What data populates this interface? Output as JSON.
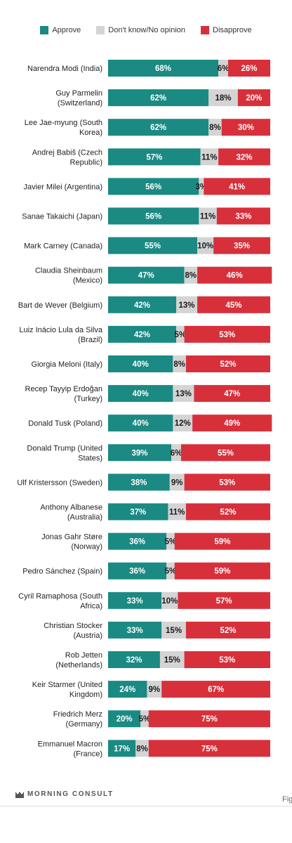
{
  "legend": {
    "approve": "Approve",
    "dont_know": "Don't know/No opinion",
    "disapprove": "Disapprove"
  },
  "colors": {
    "approve": "#1a8a83",
    "dont_know": "#d4d4d4",
    "disapprove": "#d7303b"
  },
  "footer": {
    "brand": "MORNING CONSULT",
    "brand_icon": "morning-consult-logo-icon",
    "fig_text": "Fig"
  },
  "chart_data": {
    "type": "bar",
    "orientation": "horizontal",
    "stacked": true,
    "categories": [
      "Narendra Modi (India)",
      "Guy Parmelin (Switzerland)",
      "Lee Jae-myung (South Korea)",
      "Andrej Babiš (Czech Republic)",
      "Javier Milei (Argentina)",
      "Sanae Takaichi (Japan)",
      "Mark Carney (Canada)",
      "Claudia Sheinbaum (Mexico)",
      "Bart de Wever (Belgium)",
      "Luiz Inácio Lula da Silva (Brazil)",
      "Giorgia Meloni (Italy)",
      "Recep Tayyip Erdoğan (Turkey)",
      "Donald Tusk (Poland)",
      "Donald Trump (United States)",
      "Ulf Kristersson (Sweden)",
      "Anthony Albanese (Australia)",
      "Jonas Gahr Støre (Norway)",
      "Pedro Sánchez (Spain)",
      "Cyril Ramaphosa (South Africa)",
      "Christian Stocker (Austria)",
      "Rob Jetten (Netherlands)",
      "Keir Starmer (United Kingdom)",
      "Friedrich Merz (Germany)",
      "Emmanuel Macron (France)"
    ],
    "label_lines": [
      [
        "Narendra Modi (India)"
      ],
      [
        "Guy Parmelin",
        "(Switzerland)"
      ],
      [
        "Lee Jae-myung (South",
        "Korea)"
      ],
      [
        "Andrej Babiš (Czech",
        "Republic)"
      ],
      [
        "Javier Milei (Argentina)"
      ],
      [
        "Sanae Takaichi (Japan)"
      ],
      [
        "Mark Carney (Canada)"
      ],
      [
        "Claudia Sheinbaum",
        "(Mexico)"
      ],
      [
        "Bart de Wever (Belgium)"
      ],
      [
        "Luiz Inácio Lula da Silva",
        "(Brazil)"
      ],
      [
        "Giorgia Meloni (Italy)"
      ],
      [
        "Recep Tayyip Erdoğan",
        "(Turkey)"
      ],
      [
        "Donald Tusk (Poland)"
      ],
      [
        "Donald Trump (United",
        "States)"
      ],
      [
        "Ulf Kristersson (Sweden)"
      ],
      [
        "Anthony Albanese",
        "(Australia)"
      ],
      [
        "Jonas Gahr Støre",
        "(Norway)"
      ],
      [
        "Pedro Sánchez (Spain)"
      ],
      [
        "Cyril Ramaphosa (South",
        "Africa)"
      ],
      [
        "Christian Stocker",
        "(Austria)"
      ],
      [
        "Rob Jetten",
        "(Netherlands)"
      ],
      [
        "Keir Starmer (United",
        "Kingdom)"
      ],
      [
        "Friedrich Merz",
        "(Germany)"
      ],
      [
        "Emmanuel Macron",
        "(France)"
      ]
    ],
    "series": [
      {
        "name": "Approve",
        "key": "approve",
        "values": [
          68,
          62,
          62,
          57,
          56,
          56,
          55,
          47,
          42,
          42,
          40,
          40,
          40,
          39,
          38,
          37,
          36,
          36,
          33,
          33,
          32,
          24,
          20,
          17
        ]
      },
      {
        "name": "Don't know/No opinion",
        "key": "dont_know",
        "values": [
          6,
          18,
          8,
          11,
          3,
          11,
          10,
          8,
          13,
          5,
          8,
          13,
          12,
          6,
          9,
          11,
          5,
          5,
          10,
          15,
          15,
          9,
          5,
          8
        ]
      },
      {
        "name": "Disapprove",
        "key": "disapprove",
        "values": [
          26,
          20,
          30,
          32,
          41,
          33,
          35,
          46,
          45,
          53,
          52,
          47,
          49,
          55,
          53,
          52,
          59,
          59,
          57,
          52,
          53,
          67,
          75,
          75
        ]
      }
    ],
    "value_suffix": "%",
    "xlim": [
      0,
      100
    ],
    "legend_position": "top",
    "grid": false
  }
}
